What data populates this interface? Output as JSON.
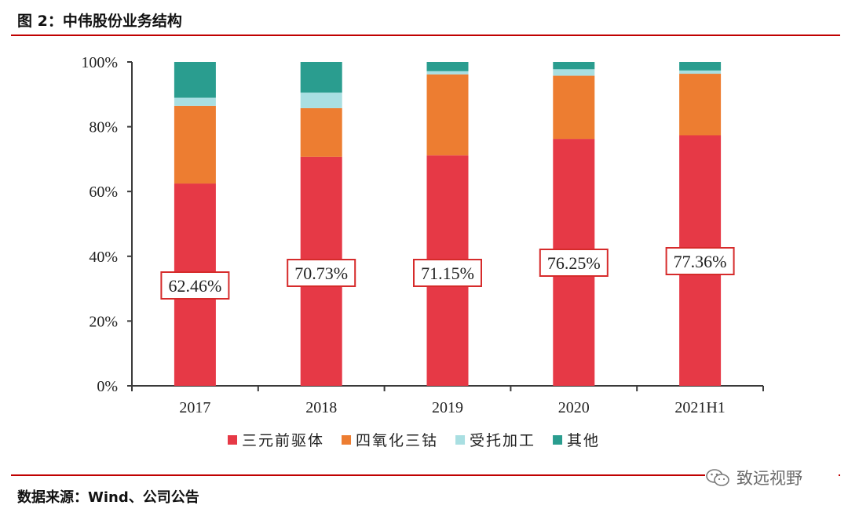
{
  "figure_title": "图 2：中伟股份业务结构",
  "source_note": "数据来源：Wind、公司公告",
  "watermark": {
    "text": "致远视野",
    "icon": "wechat-icon"
  },
  "chart_data": {
    "type": "bar",
    "stacked": true,
    "categories": [
      "2017",
      "2018",
      "2019",
      "2020",
      "2021H1"
    ],
    "ylim": [
      0,
      100
    ],
    "yticks": [
      "0%",
      "20%",
      "40%",
      "60%",
      "80%",
      "100%"
    ],
    "grid": false,
    "legend_position": "bottom",
    "series": [
      {
        "name": "三元前驱体",
        "color": "#e63946",
        "values": [
          62.46,
          70.73,
          71.15,
          76.25,
          77.36
        ]
      },
      {
        "name": "四氧化三钴",
        "color": "#ed7d31",
        "values": [
          24.0,
          15.0,
          25.0,
          19.5,
          19.0
        ]
      },
      {
        "name": "受托加工",
        "color": "#a9dfe2",
        "values": [
          2.5,
          4.8,
          1.0,
          2.0,
          1.0
        ]
      },
      {
        "name": "其他",
        "color": "#2a9d8f",
        "values": [
          11.04,
          9.47,
          2.85,
          2.25,
          2.64
        ]
      }
    ],
    "callouts": [
      "62.46%",
      "70.73%",
      "71.15%",
      "76.25%",
      "77.36%"
    ],
    "callout_series": "三元前驱体"
  }
}
